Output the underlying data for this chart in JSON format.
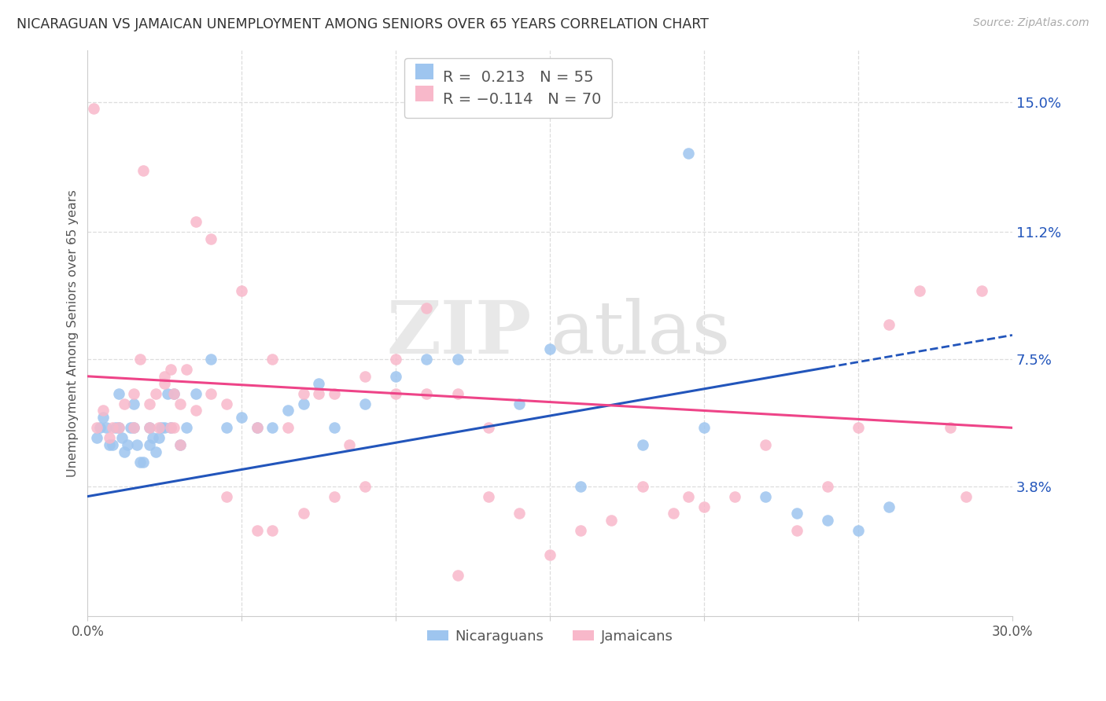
{
  "title": "NICARAGUAN VS JAMAICAN UNEMPLOYMENT AMONG SENIORS OVER 65 YEARS CORRELATION CHART",
  "source": "Source: ZipAtlas.com",
  "ylabel": "Unemployment Among Seniors over 65 years",
  "right_yticks": [
    3.8,
    7.5,
    11.2,
    15.0
  ],
  "right_ytick_labels": [
    "3.8%",
    "7.5%",
    "11.2%",
    "15.0%"
  ],
  "xmin": 0.0,
  "xmax": 30.0,
  "ymin": 0.0,
  "ymax": 16.5,
  "blue_R": 0.213,
  "blue_N": 55,
  "pink_R": -0.114,
  "pink_N": 70,
  "blue_color": "#9ec5ef",
  "pink_color": "#f8b8ca",
  "blue_line_color": "#2255bb",
  "pink_line_color": "#ee4488",
  "legend_blue_label": "Nicaraguans",
  "legend_pink_label": "Jamaicans",
  "blue_line_y0": 3.5,
  "blue_line_y30": 8.2,
  "pink_line_y0": 7.0,
  "pink_line_y30": 5.5,
  "dash_start_x": 24.0,
  "blue_scatter_x": [
    0.3,
    0.4,
    0.5,
    0.6,
    0.7,
    0.8,
    0.9,
    1.0,
    1.0,
    1.1,
    1.2,
    1.3,
    1.4,
    1.5,
    1.5,
    1.6,
    1.7,
    1.8,
    2.0,
    2.0,
    2.1,
    2.2,
    2.3,
    2.4,
    2.5,
    2.6,
    2.7,
    2.8,
    3.0,
    3.2,
    3.5,
    4.0,
    4.5,
    5.0,
    5.5,
    6.0,
    6.5,
    7.0,
    7.5,
    8.0,
    9.0,
    10.0,
    11.0,
    12.0,
    14.0,
    15.0,
    16.0,
    18.0,
    20.0,
    22.0,
    23.0,
    24.0,
    25.0,
    26.0,
    19.5
  ],
  "blue_scatter_y": [
    5.2,
    5.5,
    5.8,
    5.5,
    5.0,
    5.0,
    5.5,
    5.5,
    6.5,
    5.2,
    4.8,
    5.0,
    5.5,
    5.5,
    6.2,
    5.0,
    4.5,
    4.5,
    5.5,
    5.0,
    5.2,
    4.8,
    5.2,
    5.5,
    5.5,
    6.5,
    5.5,
    6.5,
    5.0,
    5.5,
    6.5,
    7.5,
    5.5,
    5.8,
    5.5,
    5.5,
    6.0,
    6.2,
    6.8,
    5.5,
    6.2,
    7.0,
    7.5,
    7.5,
    6.2,
    7.8,
    3.8,
    5.0,
    5.5,
    3.5,
    3.0,
    2.8,
    2.5,
    3.2,
    13.5
  ],
  "pink_scatter_x": [
    0.2,
    0.3,
    0.5,
    0.7,
    0.8,
    1.0,
    1.2,
    1.5,
    1.5,
    1.7,
    1.8,
    2.0,
    2.0,
    2.2,
    2.3,
    2.5,
    2.5,
    2.7,
    2.7,
    2.8,
    2.8,
    3.0,
    3.0,
    3.2,
    3.5,
    3.5,
    4.0,
    4.0,
    4.5,
    5.0,
    5.5,
    6.0,
    6.5,
    7.0,
    7.5,
    8.0,
    8.5,
    9.0,
    10.0,
    11.0,
    12.0,
    13.0,
    14.0,
    15.0,
    16.0,
    17.0,
    18.0,
    19.0,
    19.5,
    20.0,
    21.0,
    22.0,
    23.0,
    24.0,
    25.0,
    26.0,
    27.0,
    28.0,
    28.5,
    29.0,
    4.5,
    5.5,
    6.0,
    7.0,
    8.0,
    9.0,
    10.0,
    11.0,
    12.0,
    13.0
  ],
  "pink_scatter_y": [
    14.8,
    5.5,
    6.0,
    5.2,
    5.5,
    5.5,
    6.2,
    6.5,
    5.5,
    7.5,
    13.0,
    5.5,
    6.2,
    6.5,
    5.5,
    7.0,
    6.8,
    7.2,
    5.5,
    5.5,
    6.5,
    6.2,
    5.0,
    7.2,
    6.0,
    11.5,
    6.5,
    11.0,
    6.2,
    9.5,
    5.5,
    7.5,
    5.5,
    6.5,
    6.5,
    6.5,
    5.0,
    7.0,
    7.5,
    6.5,
    6.5,
    5.5,
    3.0,
    1.8,
    2.5,
    2.8,
    3.8,
    3.0,
    3.5,
    3.2,
    3.5,
    5.0,
    2.5,
    3.8,
    5.5,
    8.5,
    9.5,
    5.5,
    3.5,
    9.5,
    3.5,
    2.5,
    2.5,
    3.0,
    3.5,
    3.8,
    6.5,
    9.0,
    1.2,
    3.5
  ]
}
